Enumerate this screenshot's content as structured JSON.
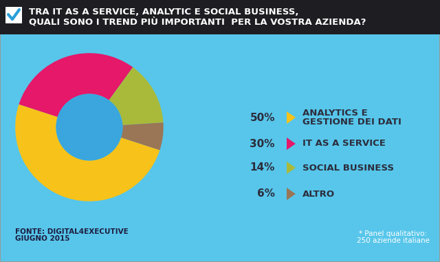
{
  "chart_data": {
    "type": "pie",
    "title": "TRA IT AS A SERVICE, ANALYTIC E SOCIAL BUSINESS,\nQUALI SONO I TREND PIÙ IMPORTANTI  PER LA VOSTRA AZIENDA?",
    "categories": [
      "ANALYTICS E\nGESTIONE DEI DATI",
      "IT AS A SERVICE",
      "SOCIAL BUSINESS",
      "ALTRO"
    ],
    "values": [
      50,
      30,
      14,
      6
    ],
    "value_labels": [
      "50%",
      "30%",
      "14%",
      "6%"
    ],
    "colors": [
      "#f7c21a",
      "#e5186a",
      "#a9ba3a",
      "#9a7656"
    ],
    "data_labels": true,
    "annotations": [
      "FONTE: DIGITAL4EXECUTIVE\nGIUGNO 2015",
      "* Panel qualitativo:\n250 aziende italiane"
    ]
  }
}
